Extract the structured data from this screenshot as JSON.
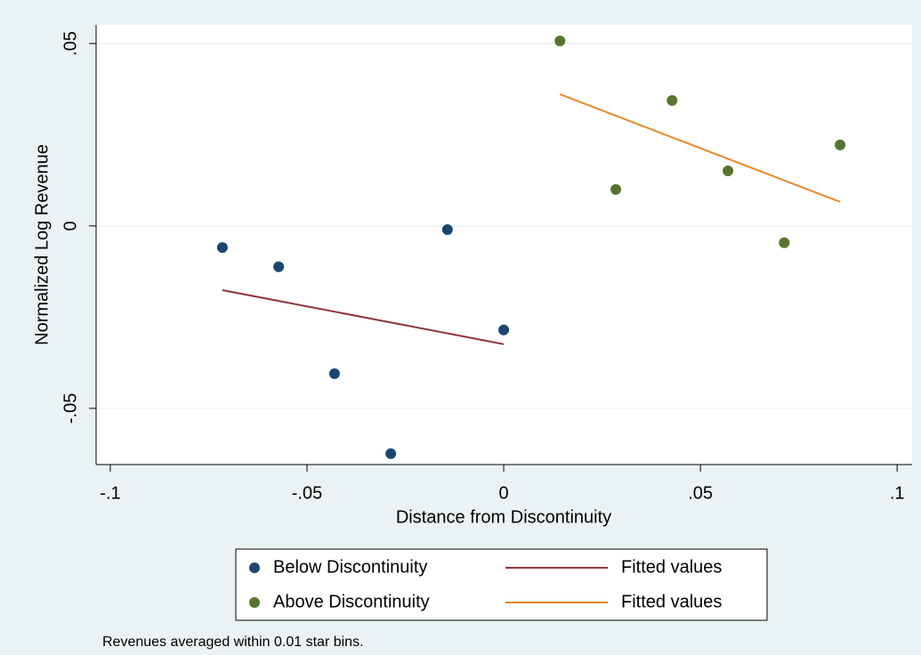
{
  "chart_data": {
    "type": "scatter",
    "x_label": "Distance from Discontinuity",
    "y_label": "Normalized Log Revenue",
    "note": "Revenues averaged within 0.01 star bins.",
    "xlim": [
      -0.1036,
      0.1038
    ],
    "ylim": [
      -0.0654,
      0.0551
    ],
    "xticks": [
      {
        "value": -0.1,
        "label": "-.1"
      },
      {
        "value": -0.05,
        "label": "-.05"
      },
      0,
      {
        "value": 0.05,
        "label": ".05"
      },
      {
        "value": 0.1,
        "label": ".1"
      }
    ],
    "yticks": [
      {
        "value": -0.05,
        "label": "-.05"
      },
      0,
      {
        "value": 0.05,
        "label": ".05"
      }
    ],
    "grid": true,
    "series": [
      {
        "name": "Below Discontinuity",
        "color": "#1a476f",
        "mode": "markers",
        "x": [
          -0.0715,
          -0.0572,
          -0.043,
          -0.0287,
          -0.0143,
          0
        ],
        "values": [
          -0.0059,
          -0.0112,
          -0.0405,
          -0.0624,
          -0.001,
          -0.0285
        ]
      },
      {
        "name": "Above Discontinuity",
        "color": "#55752f",
        "mode": "markers",
        "x": [
          0.0143,
          0.0285,
          0.0428,
          0.057,
          0.0713,
          0.0855
        ],
        "values": [
          0.0507,
          0.01,
          0.0344,
          0.0151,
          -0.0046,
          0.0222
        ]
      },
      {
        "name": "Fitted values",
        "color": "#90353b",
        "mode": "line",
        "x": [
          -0.0715,
          0
        ],
        "values": [
          -0.0176,
          -0.0324
        ]
      },
      {
        "name": "Fitted values",
        "color": "#e8892b",
        "mode": "line",
        "x": [
          0.0143,
          0.0855
        ],
        "values": [
          0.0361,
          0.0066
        ]
      }
    ]
  }
}
